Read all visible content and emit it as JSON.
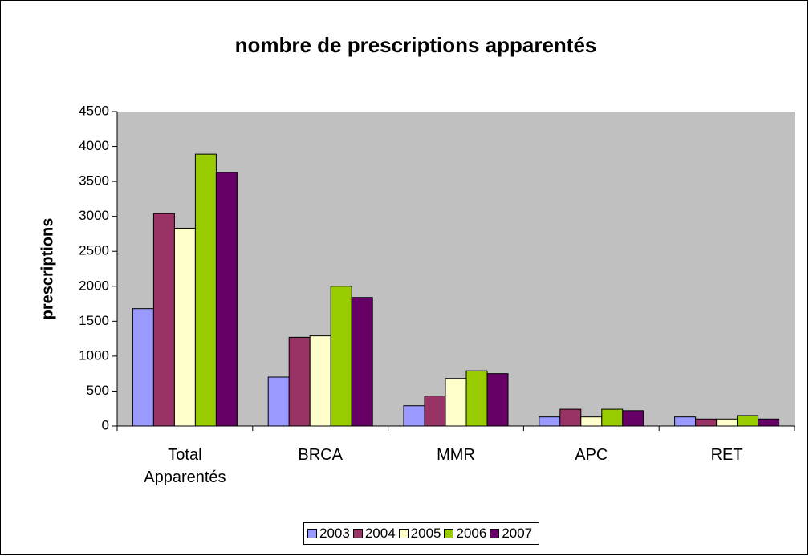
{
  "chart_data": {
    "type": "bar",
    "title": "nombre de prescriptions apparentés",
    "y_label": "prescriptions",
    "categories": [
      "Total Apparentés",
      "BRCA",
      "MMR",
      "APC",
      "RET"
    ],
    "series": [
      {
        "name": "2003",
        "color": "#9999ff",
        "values": [
          1680,
          700,
          290,
          130,
          130
        ]
      },
      {
        "name": "2004",
        "color": "#993366",
        "values": [
          3040,
          1270,
          430,
          240,
          100
        ]
      },
      {
        "name": "2005",
        "color": "#ffffcc",
        "values": [
          2830,
          1290,
          680,
          130,
          100
        ]
      },
      {
        "name": "2006",
        "color": "#99cc00",
        "values": [
          3890,
          2000,
          790,
          240,
          150
        ]
      },
      {
        "name": "2007",
        "color": "#660066",
        "values": [
          3630,
          1840,
          750,
          220,
          100
        ]
      }
    ],
    "ylim": [
      0,
      4500
    ],
    "yticks": [
      0,
      500,
      1000,
      1500,
      2000,
      2500,
      3000,
      3500,
      4000,
      4500
    ],
    "grid": false,
    "plot_background": "#c0c0c0",
    "legend": "bottom"
  }
}
